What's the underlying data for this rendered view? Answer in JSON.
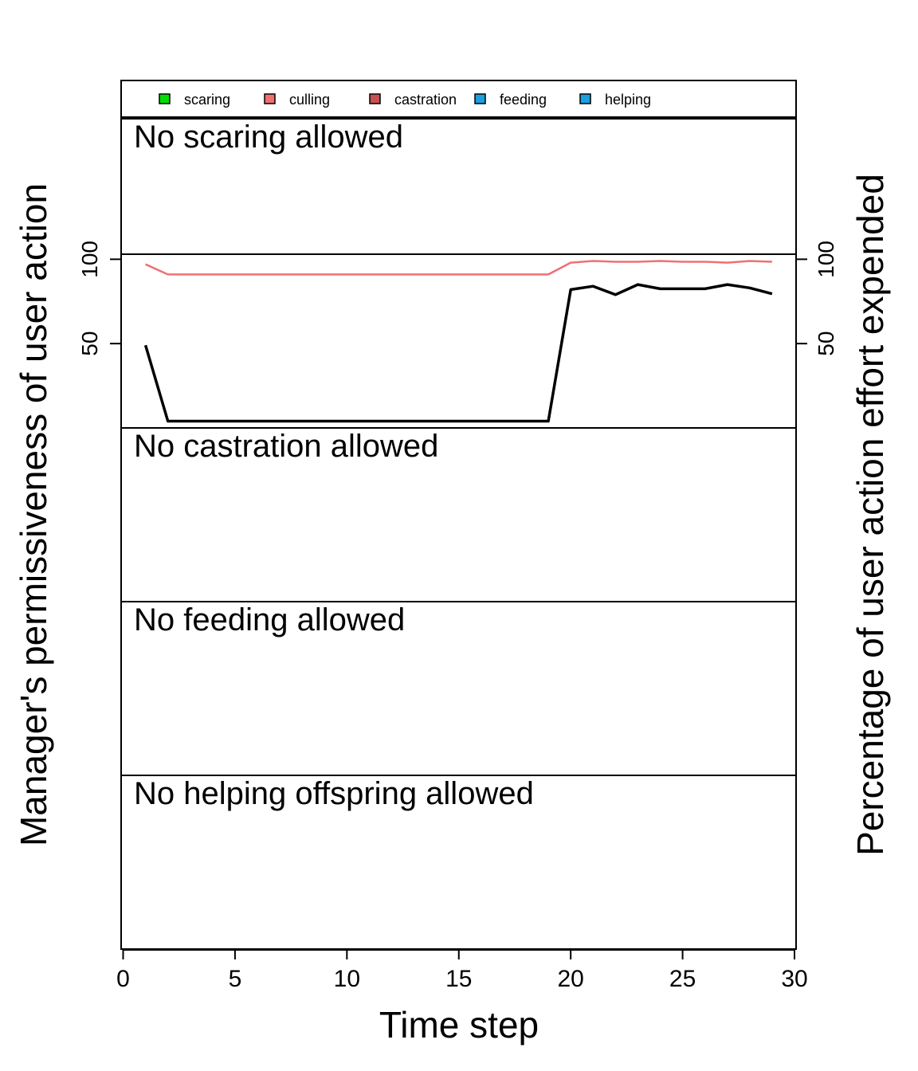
{
  "chart_data": {
    "type": "line",
    "title": "",
    "xlabel": "Time step",
    "ylabel_left": "Manager's permissiveness of user action",
    "ylabel_right": "Percentage of user action effort expended",
    "xlim": [
      0,
      30
    ],
    "x_ticks": [
      0,
      5,
      10,
      15,
      20,
      25,
      30
    ],
    "y_ticks": [
      50,
      100
    ],
    "grid": false,
    "legend": {
      "placement": "top",
      "entries": [
        {
          "label": "scaring",
          "color": "#00e000"
        },
        {
          "label": "culling",
          "color": "#f07070"
        },
        {
          "label": "castration",
          "color": "#c85050"
        },
        {
          "label": "feeding",
          "color": "#1aa0e0"
        },
        {
          "label": "helping",
          "color": "#1aa0e0"
        }
      ]
    },
    "panels": [
      {
        "name": "scaring",
        "label": "No scaring allowed",
        "series": []
      },
      {
        "name": "culling",
        "label": "",
        "ylim": [
          0,
          103
        ],
        "series": [
          {
            "name": "culling",
            "color": "#f07070",
            "width": 2.5,
            "x": [
              1,
              2,
              3,
              4,
              5,
              6,
              7,
              8,
              9,
              10,
              11,
              12,
              13,
              14,
              15,
              16,
              17,
              18,
              19,
              20,
              21,
              22,
              23,
              24,
              25,
              26,
              27,
              28,
              29
            ],
            "y": [
              97,
              91,
              91,
              91,
              91,
              91,
              91,
              91,
              91,
              91,
              91,
              91,
              91,
              91,
              91,
              91,
              91,
              91,
              91,
              98,
              99,
              98.5,
              98.5,
              99,
              98.5,
              98.5,
              98,
              99,
              98.5
            ]
          },
          {
            "name": "",
            "color": "#000000",
            "width": 3.5,
            "x": [
              1,
              2,
              3,
              4,
              5,
              6,
              7,
              8,
              9,
              10,
              11,
              12,
              13,
              14,
              15,
              16,
              17,
              18,
              19,
              20,
              21,
              22,
              23,
              24,
              25,
              26,
              27,
              28,
              29
            ],
            "y": [
              49,
              4,
              4,
              4,
              4,
              4,
              4,
              4,
              4,
              4,
              4,
              4,
              4,
              4,
              4,
              4,
              4,
              4,
              4,
              82,
              84,
              79,
              85,
              82.5,
              82.5,
              82.5,
              85,
              83,
              79.5
            ]
          }
        ]
      },
      {
        "name": "castration",
        "label": "No castration allowed",
        "series": []
      },
      {
        "name": "feeding",
        "label": "No feeding allowed",
        "series": []
      },
      {
        "name": "helping",
        "label": "No helping offspring allowed",
        "series": []
      }
    ]
  }
}
